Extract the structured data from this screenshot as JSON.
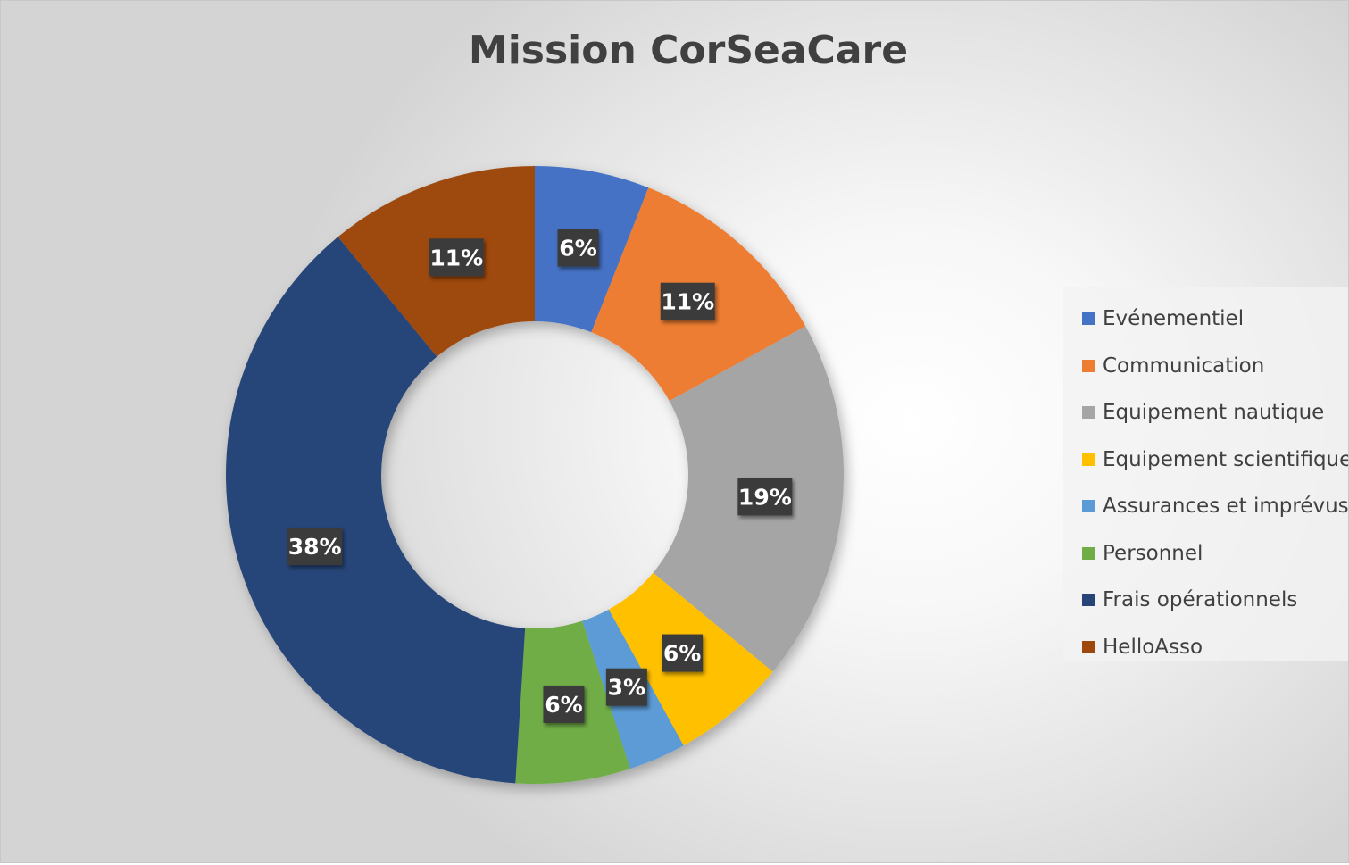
{
  "chart_data": {
    "type": "pie",
    "subtype": "doughnut",
    "title": "Mission CorSeaCare",
    "legend_position": "right",
    "categories": [
      "Evénementiel",
      "Communication",
      "Equipement nautique",
      "Equipement scientifique",
      "Assurances et imprévus",
      "Personnel",
      "Frais opérationnels",
      "HelloAsso"
    ],
    "values": [
      6,
      11,
      19,
      6,
      3,
      6,
      38,
      11
    ],
    "data_labels": [
      "6%",
      "11%",
      "19%",
      "6%",
      "3%",
      "6%",
      "38%",
      "11%"
    ],
    "colors": [
      "#4472C4",
      "#ED7D31",
      "#A5A5A5",
      "#FFC000",
      "#5B9BD5",
      "#70AD47",
      "#264478",
      "#9E480E"
    ]
  }
}
